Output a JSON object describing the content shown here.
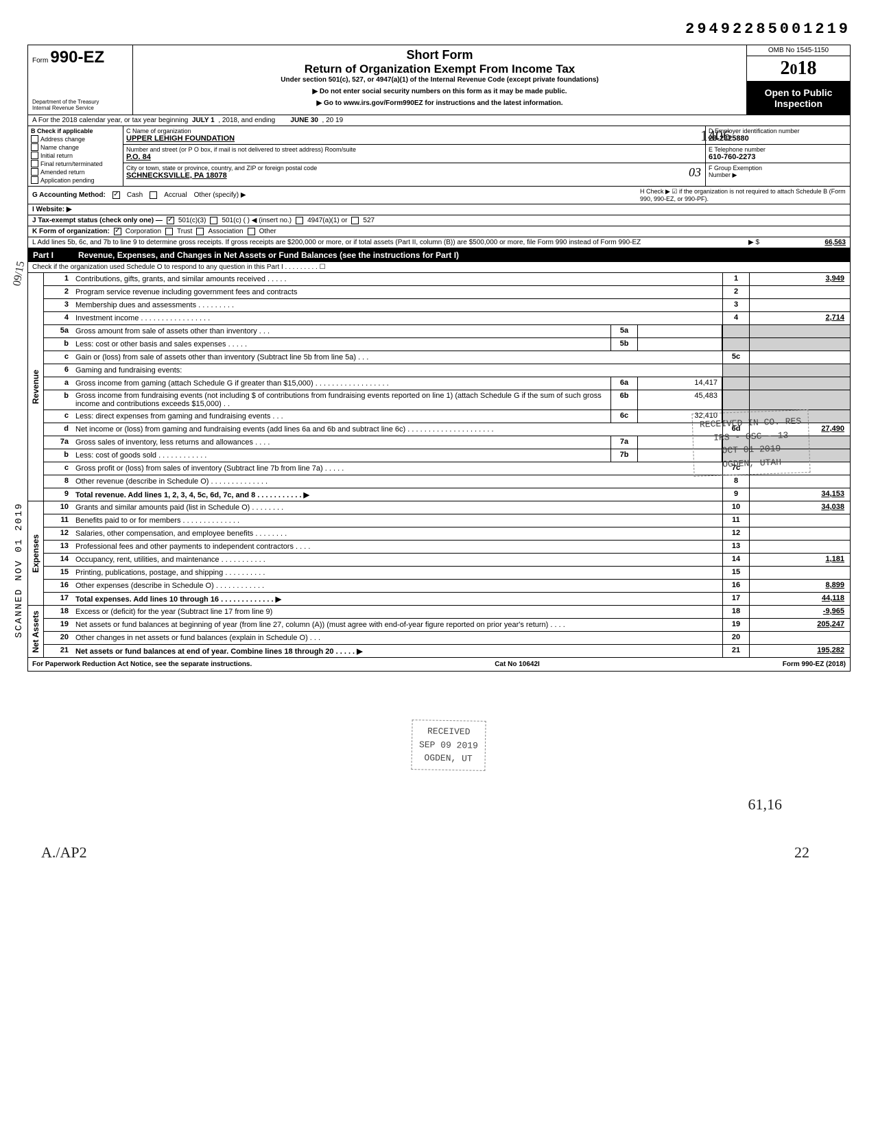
{
  "doc_id": "29492285001219",
  "form": {
    "prefix": "Form",
    "number": "990-EZ",
    "dept1": "Department of the Treasury",
    "dept2": "Internal Revenue Service"
  },
  "header": {
    "short_form": "Short Form",
    "title": "Return of Organization Exempt From Income Tax",
    "subtitle": "Under section 501(c), 527, or 4947(a)(1) of the Internal Revenue Code (except private foundations)",
    "instr1": "▶ Do not enter social security numbers on this form as it may be made public.",
    "instr2": "▶ Go to www.irs.gov/Form990EZ for instructions and the latest information.",
    "omb": "OMB No 1545-1150",
    "year": "2018",
    "open_public": "Open to Public Inspection"
  },
  "rowA": {
    "prefix": "A  For the 2018 calendar year, or tax year beginning",
    "begin": "JULY 1",
    "mid": ", 2018, and ending",
    "end": "JUNE 30",
    "yr": ", 20 19"
  },
  "B": {
    "label": "B  Check if applicable",
    "items": [
      "Address change",
      "Name change",
      "Initial return",
      "Final return/terminated",
      "Amended return",
      "Application pending"
    ]
  },
  "C": {
    "name_label": "C  Name of organization",
    "name": "UPPER LEHIGH FOUNDATION",
    "addr_label": "Number and street (or P O  box, if mail is not delivered to street address)          Room/suite",
    "addr": "P.O. 84",
    "city_label": "City or town, state or province, country, and ZIP or foreign postal code",
    "city": "SCHNECKSVILLE, PA 18078",
    "route": "03"
  },
  "D": {
    "label": "D  Employer identification number",
    "val": "23-2325880"
  },
  "E": {
    "label": "E  Telephone number",
    "val": "610-760-2273"
  },
  "F": {
    "label": "F  Group Exemption",
    "label2": "Number ▶"
  },
  "G": {
    "label": "G  Accounting Method:",
    "cash": "Cash",
    "accrual": "Accrual",
    "other": "Other (specify) ▶"
  },
  "H": {
    "text": "H  Check ▶ ☑ if the organization is not required to attach Schedule B (Form 990, 990-EZ, or 990-PF)."
  },
  "I": {
    "label": "I  Website: ▶"
  },
  "J": {
    "label": "J  Tax-exempt status (check only one) —",
    "c3": "501(c)(3)",
    "c": "501(c) (       ) ◀ (insert no.)",
    "a1": "4947(a)(1) or",
    "s527": "527"
  },
  "K": {
    "label": "K  Form of organization:",
    "corp": "Corporation",
    "trust": "Trust",
    "assoc": "Association",
    "other": "Other"
  },
  "L": {
    "text": "L  Add lines 5b, 6c, and 7b to line 9 to determine gross receipts. If gross receipts are $200,000 or more, or if total assets (Part II, column (B)) are $500,000 or more, file Form 990 instead of Form 990-EZ",
    "arrow": "▶  $",
    "val": "66,563"
  },
  "part1": {
    "label": "Part I",
    "title": "Revenue, Expenses, and Changes in Net Assets or Fund Balances (see the instructions for Part I)",
    "check": "Check if the organization used Schedule O to respond to any question in this Part I . . . . . . . . . ☐"
  },
  "sections": {
    "revenue": "Revenue",
    "expenses": "Expenses",
    "netassets": "Net Assets"
  },
  "lines": [
    {
      "n": "1",
      "d": "Contributions, gifts, grants, and similar amounts received . . . . .",
      "cn": "1",
      "v": "3,949"
    },
    {
      "n": "2",
      "d": "Program service revenue including government fees and contracts",
      "cn": "2",
      "v": ""
    },
    {
      "n": "3",
      "d": "Membership dues and assessments . . . . . . . . .",
      "cn": "3",
      "v": ""
    },
    {
      "n": "4",
      "d": "Investment income . . . . . . . . . . . . . . . . .",
      "cn": "4",
      "v": "2,714"
    },
    {
      "n": "5a",
      "d": "Gross amount from sale of assets other than inventory . . .",
      "sub": "5a",
      "subv": "",
      "shade": true
    },
    {
      "n": "b",
      "d": "Less: cost or other basis and sales expenses . . . . .",
      "sub": "5b",
      "subv": "",
      "shade": true
    },
    {
      "n": "c",
      "d": "Gain or (loss) from sale of assets other than inventory (Subtract line 5b from line 5a) . . .",
      "cn": "5c",
      "v": ""
    },
    {
      "n": "6",
      "d": "Gaming and fundraising events:",
      "shade": true
    },
    {
      "n": "a",
      "d": "Gross income from gaming (attach Schedule G if greater than $15,000) . . . . . . . . . . . . . . . . . .",
      "sub": "6a",
      "subv": "14,417",
      "shade": true
    },
    {
      "n": "b",
      "d": "Gross income from fundraising events (not including  $            of contributions from fundraising events reported on line 1) (attach Schedule G if the sum of such gross income and contributions exceeds $15,000) . .",
      "sub": "6b",
      "subv": "45,483",
      "shade": true
    },
    {
      "n": "c",
      "d": "Less: direct expenses from gaming and fundraising events . . .",
      "sub": "6c",
      "subv": "32,410",
      "shade": true
    },
    {
      "n": "d",
      "d": "Net income or (loss) from gaming and fundraising events (add lines 6a and 6b and subtract line 6c) . . . . . . . . . . . . . . . . . . . . .",
      "cn": "6d",
      "v": "27,490"
    },
    {
      "n": "7a",
      "d": "Gross sales of inventory, less returns and allowances . . . .",
      "sub": "7a",
      "subv": "",
      "shade": true
    },
    {
      "n": "b",
      "d": "Less: cost of goods sold . . . . . . . . . . . .",
      "sub": "7b",
      "subv": "",
      "shade": true
    },
    {
      "n": "c",
      "d": "Gross profit or (loss) from sales of inventory (Subtract line 7b from line 7a) . . . . .",
      "cn": "7c",
      "v": ""
    },
    {
      "n": "8",
      "d": "Other revenue (describe in Schedule O) . . . . . . . . . . . . . .",
      "cn": "8",
      "v": ""
    },
    {
      "n": "9",
      "d": "Total revenue. Add lines 1, 2, 3, 4, 5c, 6d, 7c, and 8 . . . . . . . . . . . ▶",
      "cn": "9",
      "v": "34,153",
      "bold": true
    }
  ],
  "exp_lines": [
    {
      "n": "10",
      "d": "Grants and similar amounts paid (list in Schedule O) . . . . . . . .",
      "cn": "10",
      "v": "34,038"
    },
    {
      "n": "11",
      "d": "Benefits paid to or for members . . . . . . . . . . . . . .",
      "cn": "11",
      "v": ""
    },
    {
      "n": "12",
      "d": "Salaries, other compensation, and employee benefits . . . . . . . .",
      "cn": "12",
      "v": ""
    },
    {
      "n": "13",
      "d": "Professional fees and other payments to independent contractors . . . .",
      "cn": "13",
      "v": ""
    },
    {
      "n": "14",
      "d": "Occupancy, rent, utilities, and maintenance . . . . . . . . . . .",
      "cn": "14",
      "v": "1,181"
    },
    {
      "n": "15",
      "d": "Printing, publications, postage, and shipping . . . . . . . . . .",
      "cn": "15",
      "v": ""
    },
    {
      "n": "16",
      "d": "Other expenses (describe in Schedule O) . . . . . . . . . . . .",
      "cn": "16",
      "v": "8,899"
    },
    {
      "n": "17",
      "d": "Total expenses. Add lines 10 through 16 . . . . . . . . . . . . . ▶",
      "cn": "17",
      "v": "44,118",
      "bold": true
    }
  ],
  "na_lines": [
    {
      "n": "18",
      "d": "Excess or (deficit) for the year (Subtract line 17 from line 9)",
      "cn": "18",
      "v": "-9,965"
    },
    {
      "n": "19",
      "d": "Net assets or fund balances at beginning of year (from line 27, column (A)) (must agree with end-of-year figure reported on prior year's return) . . . .",
      "cn": "19",
      "v": "205,247"
    },
    {
      "n": "20",
      "d": "Other changes in net assets or fund balances (explain in Schedule O) . . .",
      "cn": "20",
      "v": ""
    },
    {
      "n": "21",
      "d": "Net assets or fund balances at end of year. Combine lines 18 through 20 . . . . . ▶",
      "cn": "21",
      "v": "195,282",
      "bold": true
    }
  ],
  "footer": {
    "left": "For Paperwork Reduction Act Notice, see the separate instructions.",
    "mid": "Cat No 10642I",
    "right": "Form 990-EZ (2018)"
  },
  "stamps": {
    "received1": "RECEIVED IN CO. RES\nIRS - OSC - 13\nOCT 01 2019\nOGDEN, UTAH",
    "received2": "RECEIVED\nSEP 09 2019\nOGDEN, UT",
    "scanned": "SCANNED NOV 01 2019",
    "hand1": "1406",
    "hand2": "61,16",
    "hand3": "A./AP2",
    "hand4": "22",
    "hand5": "09/15"
  }
}
